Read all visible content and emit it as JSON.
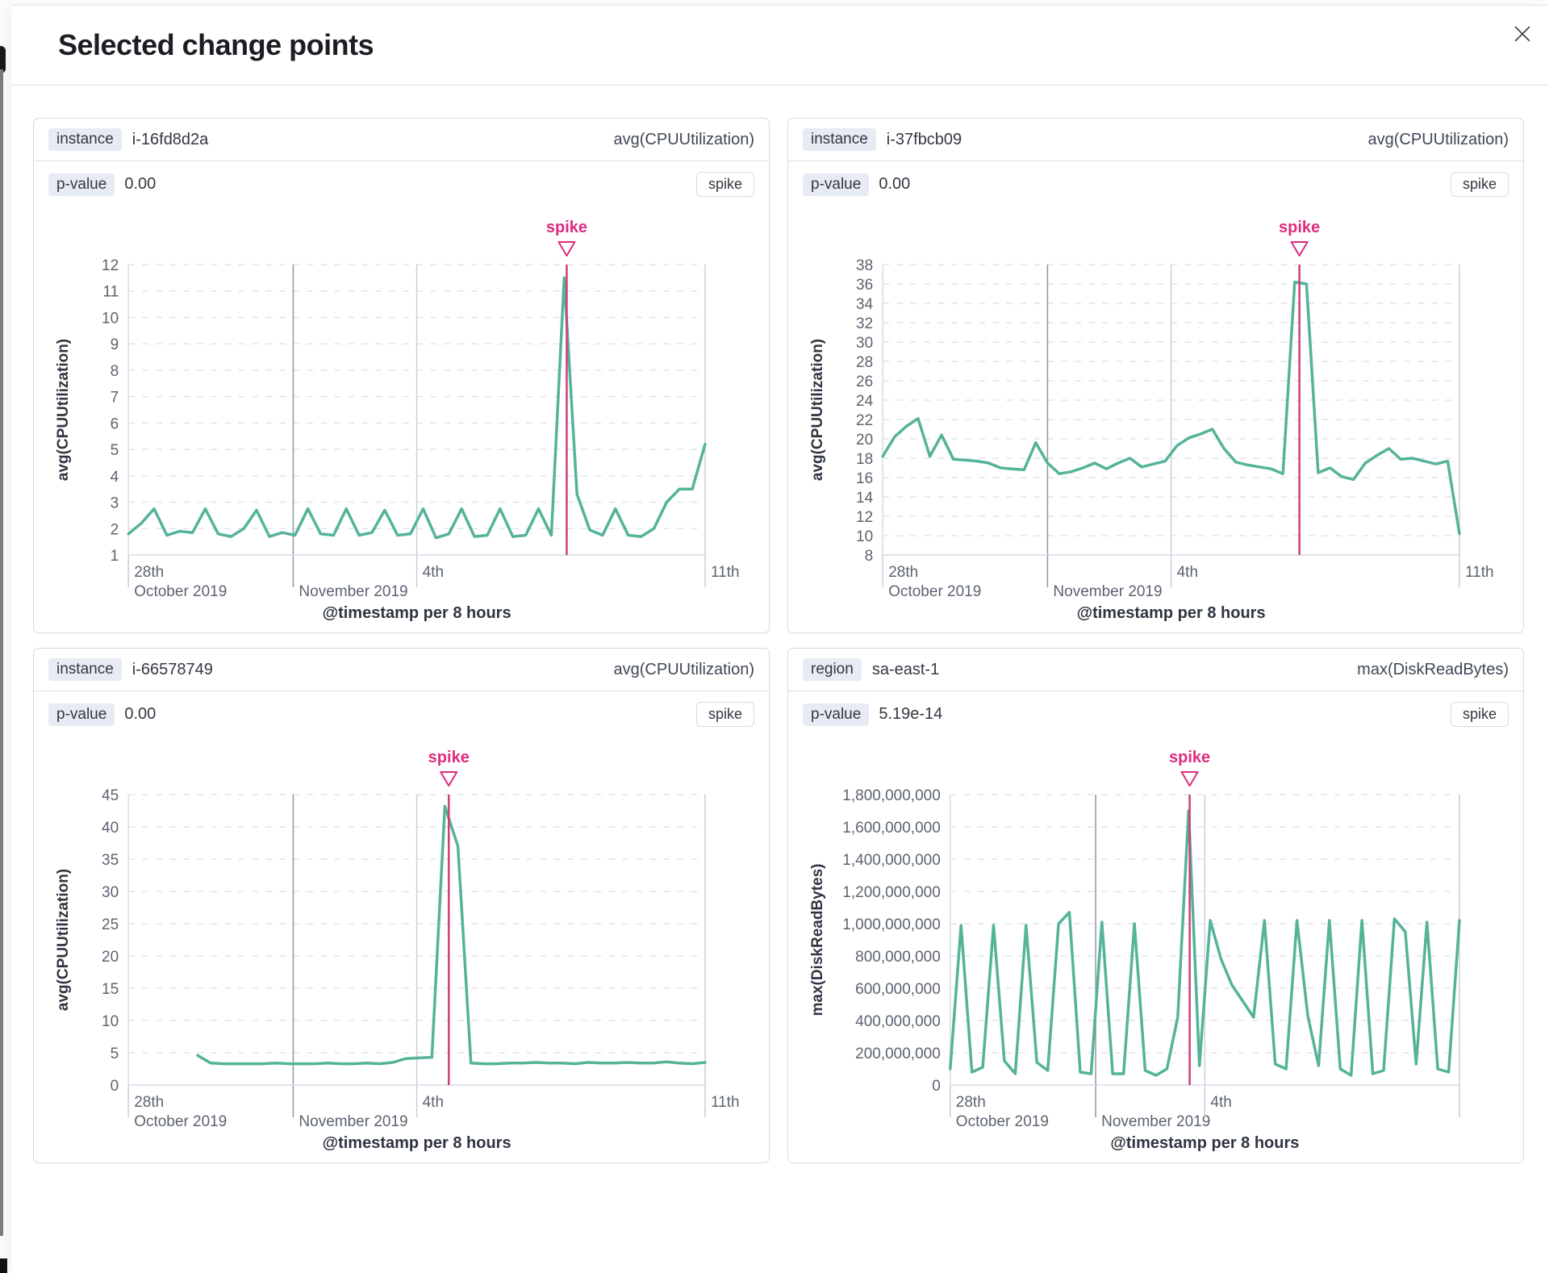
{
  "modal": {
    "title": "Selected change points"
  },
  "colors": {
    "series_green": "#54B399",
    "annotation_pink": "#DD2C7E",
    "annotation_line": "#CE3D78",
    "grid_dashed": "#dfe5ef",
    "grid_dark": "#8f95a0",
    "grid_light": "#c9cfd9",
    "axis_line": "#d6dce6",
    "tick_text": "#5c6370",
    "axis_title_text": "#2f3540"
  },
  "panels": [
    {
      "key_label": "instance",
      "key_value": "i-16fd8d2a",
      "metric": "avg(CPUUtilization)",
      "pvalue_label": "p-value",
      "pvalue": "0.00",
      "type_badge": "spike",
      "chart_data": {
        "type": "line",
        "y_title": "avg(CPUUtilization)",
        "x_title": "@timestamp per 8 hours",
        "y_ticks": [
          "1",
          "2",
          "3",
          "4",
          "5",
          "6",
          "7",
          "8",
          "9",
          "10",
          "11",
          "12"
        ],
        "x_ticks": [
          {
            "frac": 0,
            "label1": "28th",
            "label2": "October 2019",
            "grid": "tick"
          },
          {
            "frac": 0.2857,
            "label1": "",
            "label2": "November 2019",
            "grid": "dark"
          },
          {
            "frac": 0.5,
            "label1": "4th",
            "label2": "",
            "grid": "light"
          },
          {
            "frac": 1,
            "label1": "11th",
            "label2": "",
            "grid": "light"
          }
        ],
        "values": [
          1.8,
          2.2,
          2.75,
          1.75,
          1.9,
          1.85,
          2.75,
          1.8,
          1.7,
          2.0,
          2.7,
          1.7,
          1.85,
          1.75,
          2.75,
          1.8,
          1.75,
          2.75,
          1.75,
          1.85,
          2.7,
          1.75,
          1.8,
          2.75,
          1.65,
          1.8,
          2.75,
          1.7,
          1.75,
          2.75,
          1.7,
          1.75,
          2.75,
          1.75,
          11.5,
          3.3,
          1.95,
          1.75,
          2.75,
          1.75,
          1.7,
          2.0,
          3.0,
          3.5,
          3.5,
          5.2
        ],
        "annotation": {
          "label": "spike",
          "index": 34.2
        }
      }
    },
    {
      "key_label": "instance",
      "key_value": "i-37fbcb09",
      "metric": "avg(CPUUtilization)",
      "pvalue_label": "p-value",
      "pvalue": "0.00",
      "type_badge": "spike",
      "chart_data": {
        "type": "line",
        "y_title": "avg(CPUUtilization)",
        "x_title": "@timestamp per 8 hours",
        "y_ticks": [
          "8",
          "10",
          "12",
          "14",
          "16",
          "18",
          "20",
          "22",
          "24",
          "26",
          "28",
          "30",
          "32",
          "34",
          "36",
          "38"
        ],
        "x_ticks": [
          {
            "frac": 0,
            "label1": "28th",
            "label2": "October 2019",
            "grid": "tick"
          },
          {
            "frac": 0.2857,
            "label1": "",
            "label2": "November 2019",
            "grid": "dark"
          },
          {
            "frac": 0.5,
            "label1": "4th",
            "label2": "",
            "grid": "light"
          },
          {
            "frac": 1,
            "label1": "11th",
            "label2": "",
            "grid": "light"
          }
        ],
        "values": [
          18.2,
          20.2,
          21.3,
          22.1,
          18.2,
          20.4,
          17.9,
          17.8,
          17.7,
          17.5,
          17.0,
          16.9,
          16.8,
          19.6,
          17.5,
          16.4,
          16.6,
          17.0,
          17.5,
          16.9,
          17.5,
          18.0,
          17.1,
          17.4,
          17.7,
          19.3,
          20.1,
          20.5,
          21.0,
          19.0,
          17.6,
          17.3,
          17.1,
          16.9,
          16.4,
          36.2,
          36.0,
          16.5,
          17.0,
          16.1,
          15.8,
          17.5,
          18.3,
          19.0,
          17.9,
          18.0,
          17.7,
          17.4,
          17.7,
          10.2
        ],
        "annotation": {
          "label": "spike",
          "index": 35.4
        }
      }
    },
    {
      "key_label": "instance",
      "key_value": "i-66578749",
      "metric": "avg(CPUUtilization)",
      "pvalue_label": "p-value",
      "pvalue": "0.00",
      "type_badge": "spike",
      "chart_data": {
        "type": "line",
        "y_title": "avg(CPUUtilization)",
        "x_title": "@timestamp per 8 hours",
        "y_ticks": [
          "0",
          "5",
          "10",
          "15",
          "20",
          "25",
          "30",
          "35",
          "40",
          "45"
        ],
        "x_ticks": [
          {
            "frac": 0,
            "label1": "28th",
            "label2": "October 2019",
            "grid": "tick"
          },
          {
            "frac": 0.2857,
            "label1": "",
            "label2": "November 2019",
            "grid": "dark"
          },
          {
            "frac": 0.5,
            "label1": "4th",
            "label2": "",
            "grid": "light"
          },
          {
            "frac": 1,
            "label1": "11th",
            "label2": "",
            "grid": "light"
          }
        ],
        "series_x0": 0.12,
        "values": [
          4.6,
          3.4,
          3.3,
          3.3,
          3.3,
          3.3,
          3.4,
          3.3,
          3.3,
          3.3,
          3.4,
          3.3,
          3.3,
          3.4,
          3.3,
          3.5,
          4.1,
          4.2,
          4.3,
          43.2,
          37.0,
          3.4,
          3.3,
          3.3,
          3.4,
          3.4,
          3.5,
          3.4,
          3.4,
          3.3,
          3.5,
          3.4,
          3.4,
          3.5,
          3.4,
          3.4,
          3.6,
          3.4,
          3.3,
          3.5
        ],
        "annotation": {
          "label": "spike",
          "index": 19.3
        }
      }
    },
    {
      "key_label": "region",
      "key_value": "sa-east-1",
      "metric": "max(DiskReadBytes)",
      "pvalue_label": "p-value",
      "pvalue": "5.19e-14",
      "type_badge": "spike",
      "chart_data": {
        "type": "line",
        "y_title": "max(DiskReadBytes)",
        "x_title": "@timestamp per 8 hours",
        "y_ticks": [
          "0",
          "200,000,000",
          "400,000,000",
          "600,000,000",
          "800,000,000",
          "1,000,000,000",
          "1,200,000,000",
          "1,400,000,000",
          "1,600,000,000",
          "1,800,000,000"
        ],
        "x_ticks": [
          {
            "frac": 0,
            "label1": "28th",
            "label2": "October 2019",
            "grid": "tick"
          },
          {
            "frac": 0.2857,
            "label1": "",
            "label2": "November 2019",
            "grid": "dark"
          },
          {
            "frac": 0.5,
            "label1": "4th",
            "label2": "",
            "grid": "light"
          },
          {
            "frac": 1,
            "label1": "",
            "label2": "",
            "grid": "light"
          }
        ],
        "values": [
          100000000,
          990000000,
          80000000,
          110000000,
          990000000,
          150000000,
          70000000,
          990000000,
          140000000,
          90000000,
          1000000000,
          1070000000,
          80000000,
          70000000,
          1010000000,
          70000000,
          70000000,
          1000000000,
          90000000,
          60000000,
          100000000,
          420000000,
          1700000000,
          120000000,
          1020000000,
          780000000,
          620000000,
          520000000,
          420000000,
          1020000000,
          130000000,
          100000000,
          1020000000,
          430000000,
          120000000,
          1020000000,
          100000000,
          60000000,
          1020000000,
          70000000,
          90000000,
          1030000000,
          950000000,
          130000000,
          1010000000,
          100000000,
          80000000,
          1020000000
        ],
        "annotation": {
          "label": "spike",
          "index": 22.1
        }
      }
    }
  ]
}
